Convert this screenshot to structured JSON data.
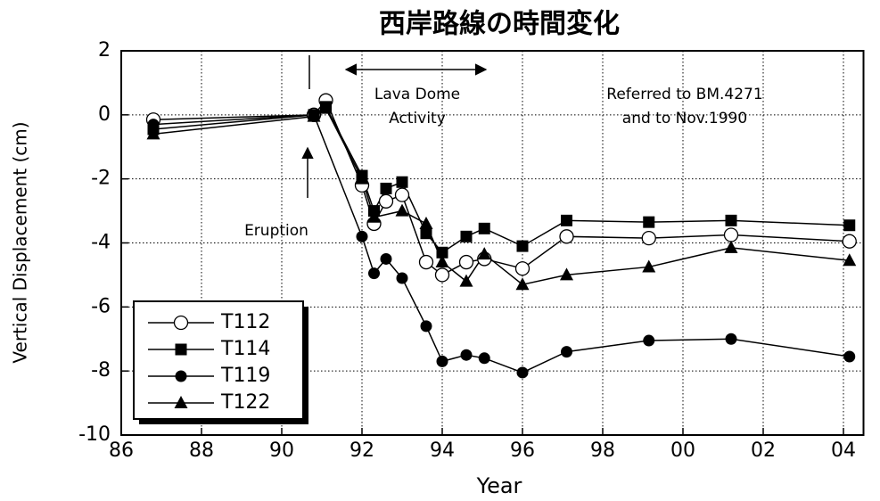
{
  "chart_data": {
    "type": "line",
    "title": "西岸路線の時間変化",
    "x_label": "Year",
    "y_label": "Vertical Displacement (cm)",
    "xlim": [
      86,
      104.5
    ],
    "ylim": [
      -10,
      2
    ],
    "xticks": [
      86,
      88,
      90,
      92,
      94,
      96,
      98,
      {
        "value": 100,
        "label": "00"
      },
      {
        "value": 102,
        "label": "02"
      },
      {
        "value": 104,
        "label": "04"
      }
    ],
    "yticks": [
      -10,
      -8,
      -6,
      -4,
      -2,
      0,
      2
    ],
    "grid": true,
    "legend": "lower left",
    "annotations": [
      [
        "Lava Dome",
        "Activity"
      ],
      [
        "Referred to BM.4271",
        "and to Nov.1990"
      ],
      [
        "Eruption"
      ]
    ],
    "series": [
      {
        "name": "T112",
        "color": "#000000",
        "marker": "open-circle",
        "x": [
          86.8,
          90.8,
          91.1,
          92.0,
          92.3,
          92.6,
          93.0,
          93.6,
          94.0,
          94.6,
          95.05,
          96.0,
          97.1,
          99.15,
          101.2,
          104.15
        ],
        "values": [
          -0.15,
          0,
          0.45,
          -2.2,
          -3.4,
          -2.7,
          -2.5,
          -4.6,
          -5.0,
          -4.6,
          -4.5,
          -4.8,
          -3.8,
          -3.85,
          -3.75,
          -3.95
        ]
      },
      {
        "name": "T114",
        "color": "#000000",
        "marker": "square",
        "x": [
          86.8,
          90.8,
          91.1,
          92.0,
          92.3,
          92.6,
          93.0,
          93.6,
          94.0,
          94.6,
          95.05,
          96.0,
          97.1,
          99.15,
          101.2,
          104.15
        ],
        "values": [
          -0.45,
          0,
          0.25,
          -1.9,
          -3.0,
          -2.3,
          -2.1,
          -3.7,
          -4.3,
          -3.8,
          -3.55,
          -4.1,
          -3.3,
          -3.35,
          -3.3,
          -3.45
        ]
      },
      {
        "name": "T119",
        "color": "#000000",
        "marker": "circle",
        "x": [
          86.8,
          90.8,
          92.0,
          92.3,
          92.6,
          93.0,
          93.6,
          94.0,
          94.6,
          95.05,
          96.0,
          97.1,
          99.15,
          101.2,
          104.15
        ],
        "values": [
          -0.3,
          0,
          -3.8,
          -4.95,
          -4.5,
          -5.1,
          -6.6,
          -7.7,
          -7.5,
          -7.6,
          -8.05,
          -7.4,
          -7.05,
          -7.0,
          -7.55
        ]
      },
      {
        "name": "T122",
        "color": "#000000",
        "marker": "triangle",
        "x": [
          86.8,
          90.8,
          91.1,
          92.0,
          92.3,
          93.0,
          93.6,
          94.0,
          94.6,
          95.05,
          96.0,
          97.1,
          99.15,
          101.2,
          104.15
        ],
        "values": [
          -0.6,
          -0.05,
          0.2,
          -2.0,
          -3.2,
          -3.0,
          -3.4,
          -4.6,
          -5.2,
          -4.35,
          -5.3,
          -5.0,
          -4.75,
          -4.15,
          -4.55
        ]
      }
    ]
  }
}
